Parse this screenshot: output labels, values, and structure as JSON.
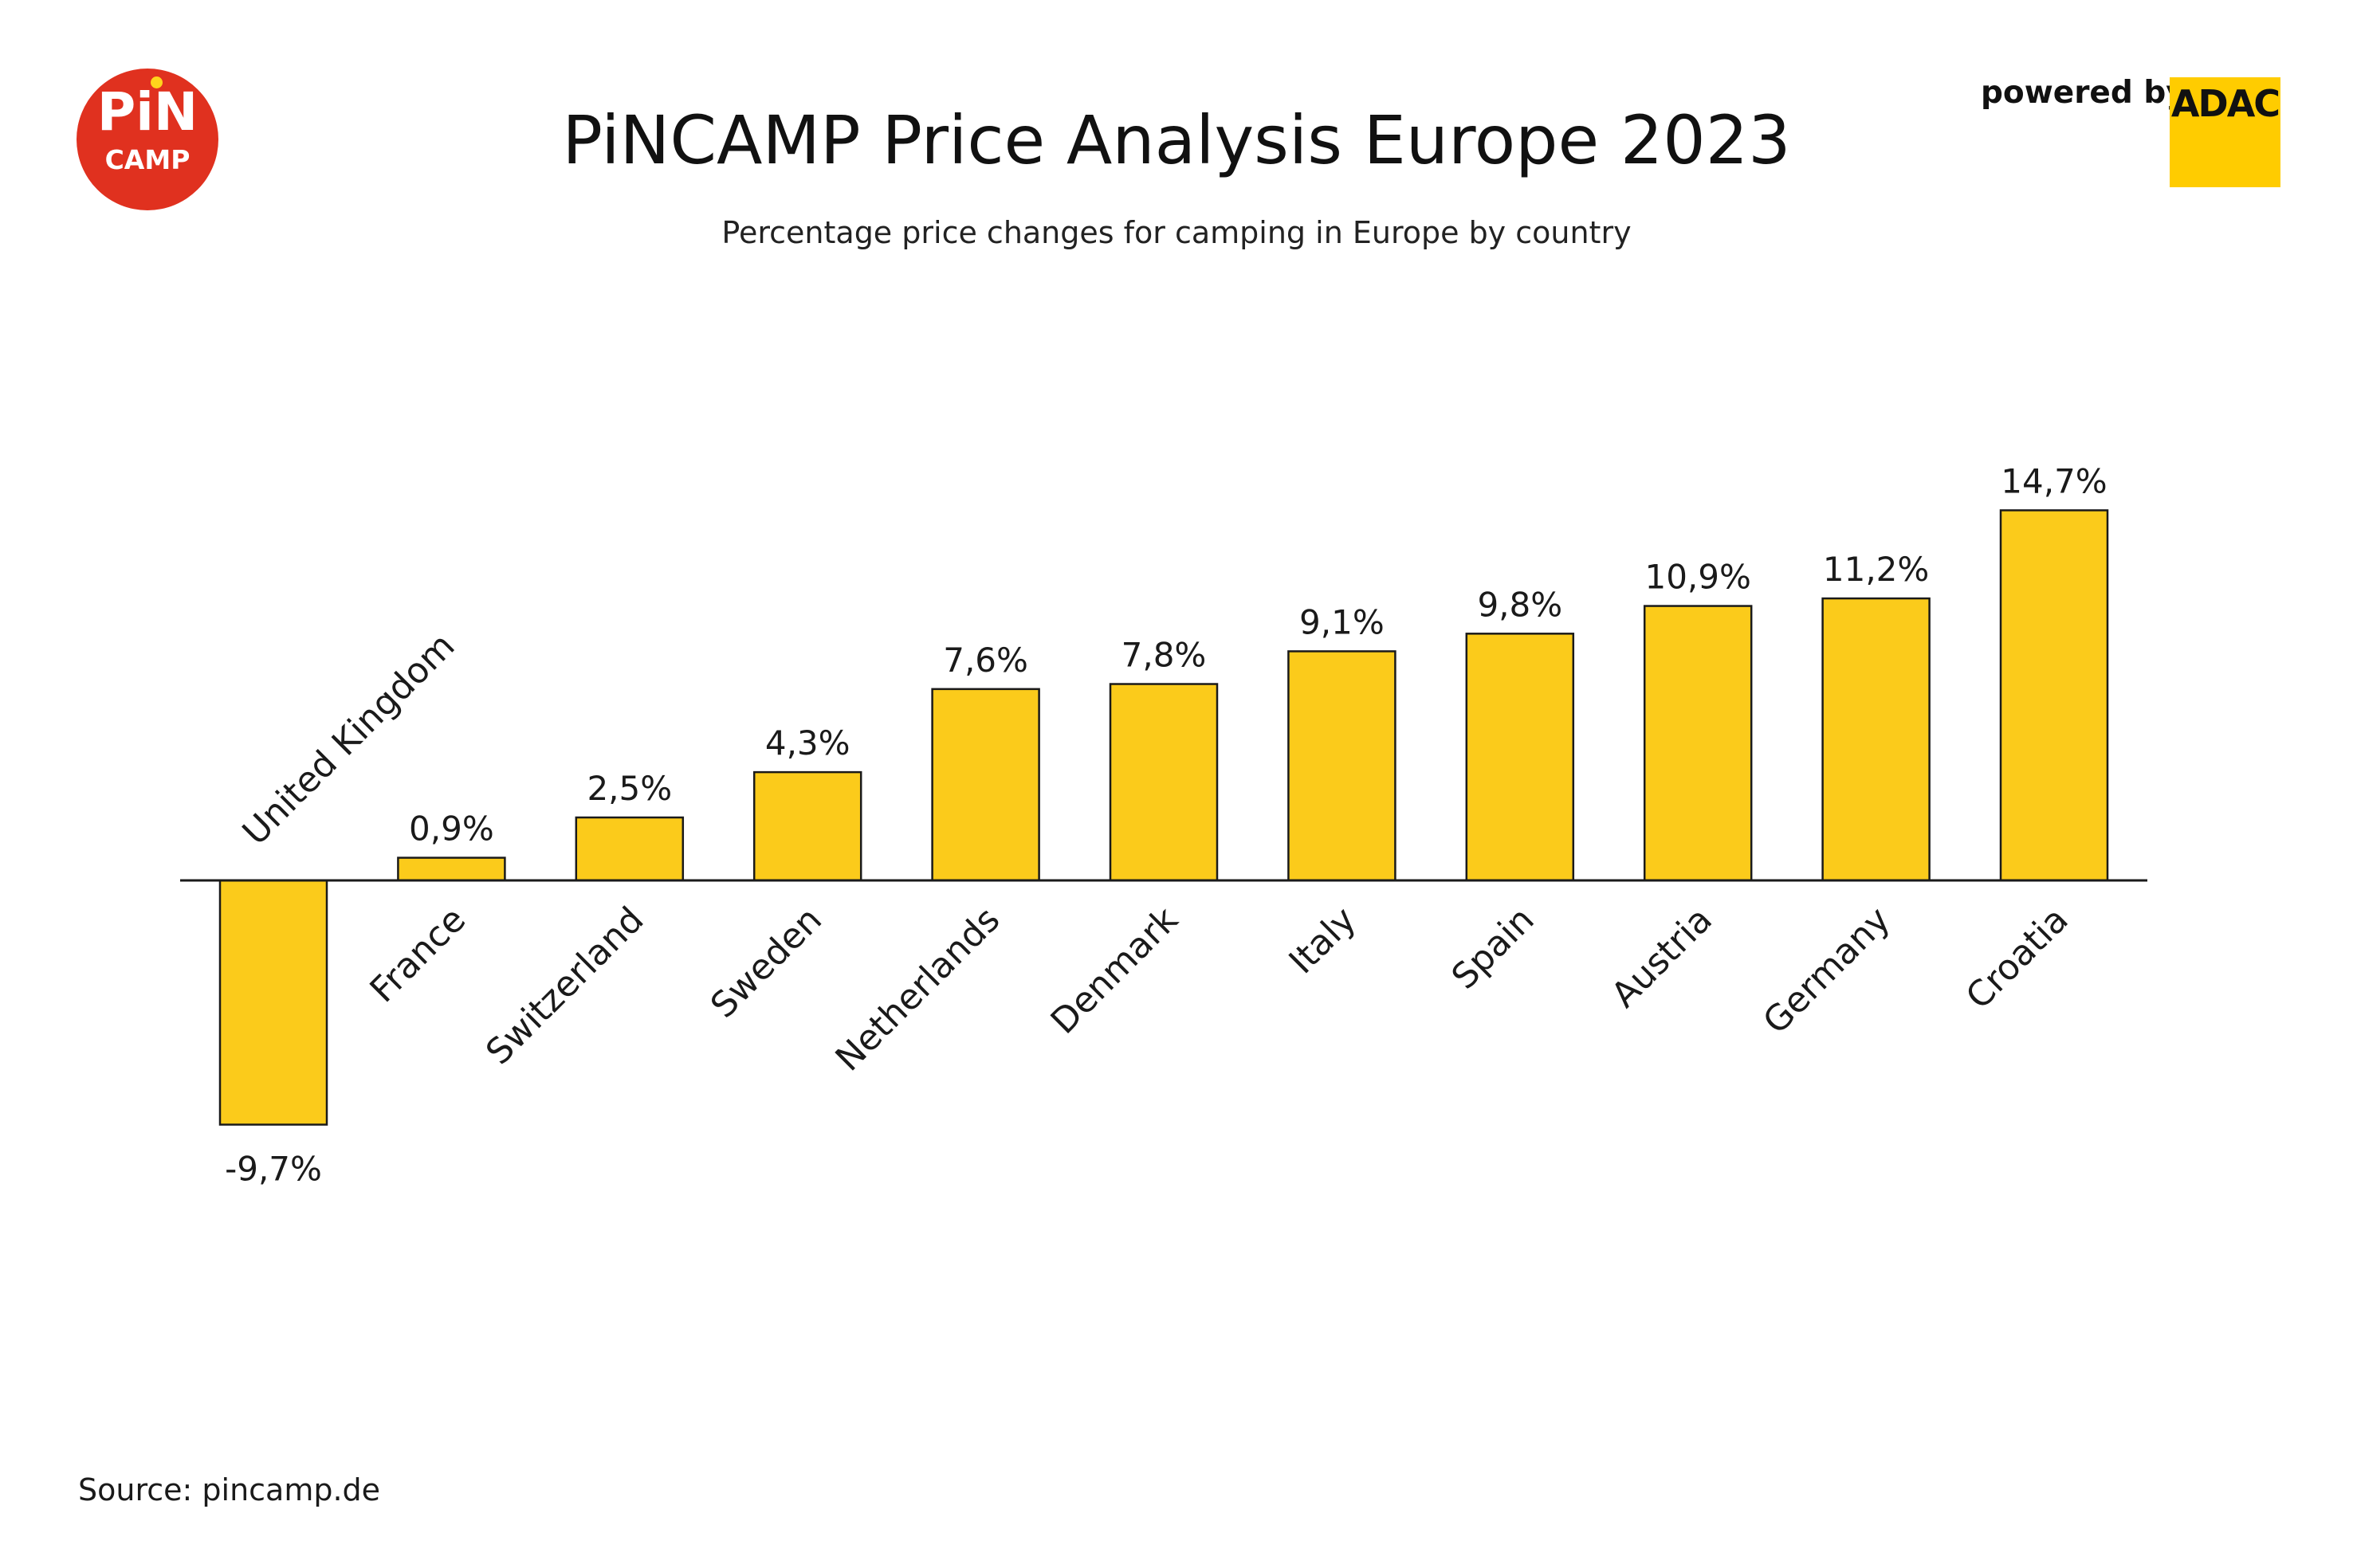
{
  "header": {
    "title": "PiNCAMP Price Analysis Europe 2023",
    "subtitle": "Percentage price changes for camping in Europe by country",
    "powered_by": "powered by",
    "sponsor_logo_text": "ADAC"
  },
  "logo": {
    "line1": "PiN",
    "line2": "CAMP",
    "color": "#e0311f"
  },
  "footer": {
    "source": "Source: pincamp.de"
  },
  "colors": {
    "bar_fill": "#fbcb1b",
    "bar_stroke": "#1a1a1a",
    "logo_red": "#e0311f",
    "adac_yellow": "#ffcc00"
  },
  "chart_data": {
    "type": "bar",
    "title": "PiNCAMP Price Analysis Europe 2023",
    "xlabel": "",
    "ylabel": "",
    "ylim": [
      -9.7,
      14.7
    ],
    "grid": false,
    "legend": "none",
    "categories": [
      "United Kingdom",
      "France",
      "Switzerland",
      "Sweden",
      "Netherlands",
      "Denmark",
      "Italy",
      "Spain",
      "Austria",
      "Germany",
      "Croatia"
    ],
    "values": [
      -9.7,
      0.9,
      2.5,
      4.3,
      7.6,
      7.8,
      9.1,
      9.8,
      10.9,
      11.2,
      14.7
    ],
    "data_labels": [
      "-9,7%",
      "0,9%",
      "2,5%",
      "4,3%",
      "7,6%",
      "7,8%",
      "9,1%",
      "9,8%",
      "10,9%",
      "11,2%",
      "14,7%"
    ]
  }
}
